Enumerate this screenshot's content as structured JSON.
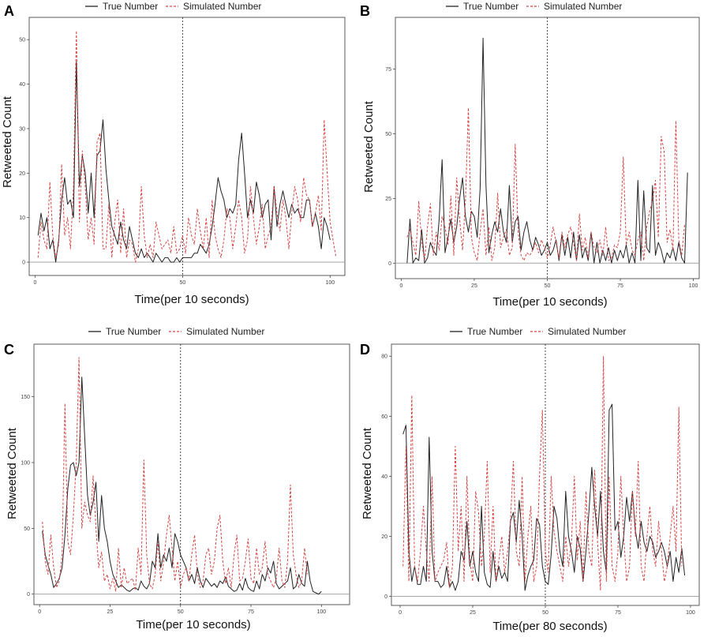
{
  "chart_data": [
    {
      "panel": "A",
      "type": "line",
      "legend": {
        "true_label": "True Number",
        "sim_label": "Simulated Number"
      },
      "xlabel": "Time(per 10 seconds)",
      "ylabel": "Retweeted Count",
      "xlim": [
        -2,
        105
      ],
      "ylim": [
        -3,
        55
      ],
      "xticks": [
        0,
        50,
        100
      ],
      "yticks": [
        0,
        10,
        20,
        30,
        40,
        50
      ],
      "vline": 50,
      "x_start": 1,
      "series": [
        {
          "name": "True Number",
          "color": "#222222",
          "dash": "none",
          "values": [
            6,
            11,
            7,
            10,
            3,
            5,
            0,
            5,
            14,
            19,
            13,
            14,
            10,
            45,
            17,
            24,
            20,
            11,
            20,
            10,
            24,
            25,
            32,
            21,
            14,
            8,
            6,
            4,
            9,
            5,
            3,
            8,
            5,
            2,
            1,
            3,
            1,
            2,
            1,
            0,
            2,
            1,
            0,
            1,
            1,
            0,
            0,
            1,
            0,
            1,
            1,
            1,
            1,
            2,
            2,
            4,
            3,
            2,
            4,
            8,
            13,
            19,
            16,
            14,
            10,
            12,
            11,
            13,
            23,
            29,
            20,
            10,
            14,
            11,
            18,
            15,
            10,
            13,
            14,
            5,
            17,
            8,
            13,
            16,
            13,
            10,
            13,
            11,
            12,
            10,
            10,
            14,
            14,
            8,
            11,
            8,
            3,
            10,
            8,
            5
          ]
        },
        {
          "name": "Simulated Number",
          "color": "#d64545",
          "dash": "3,2",
          "values": [
            1,
            9,
            5,
            3,
            18,
            6,
            1,
            4,
            22,
            6,
            10,
            3,
            17,
            52,
            9,
            25,
            17,
            5,
            10,
            4,
            27,
            29,
            3,
            3,
            13,
            1,
            9,
            14,
            2,
            12,
            1,
            5,
            4,
            0,
            3,
            17,
            6,
            1,
            4,
            1,
            9,
            6,
            3,
            4,
            5,
            2,
            8,
            2,
            3,
            6,
            2,
            10,
            6,
            4,
            12,
            7,
            3,
            10,
            1,
            14,
            6,
            3,
            1,
            5,
            12,
            10,
            3,
            8,
            14,
            10,
            2,
            5,
            17,
            10,
            4,
            8,
            13,
            3,
            6,
            8,
            17,
            11,
            7,
            14,
            10,
            3,
            11,
            17,
            14,
            9,
            19,
            15,
            14,
            8,
            11,
            15,
            7,
            32,
            20,
            9,
            5,
            1
          ]
        }
      ]
    },
    {
      "panel": "B",
      "type": "line",
      "legend": {
        "true_label": "True Number",
        "sim_label": "Simulated Number"
      },
      "xlabel": "Time(per 10 seconds)",
      "ylabel": "Retweeted Count",
      "xlim": [
        -2,
        102
      ],
      "ylim": [
        -6,
        95
      ],
      "xticks": [
        0,
        25,
        50,
        75,
        100
      ],
      "yticks": [
        0,
        25,
        50,
        75
      ],
      "vline": 50,
      "x_start": 2,
      "series": [
        {
          "name": "True Number",
          "color": "#222222",
          "dash": "none",
          "values": [
            0,
            17,
            0,
            2,
            1,
            13,
            0,
            2,
            8,
            5,
            3,
            17,
            40,
            4,
            10,
            17,
            8,
            14,
            25,
            33,
            18,
            12,
            20,
            18,
            10,
            29,
            87,
            30,
            4,
            11,
            16,
            12,
            21,
            12,
            8,
            30,
            8,
            16,
            18,
            5,
            12,
            16,
            9,
            5,
            10,
            7,
            3,
            5,
            8,
            3,
            5,
            9,
            1,
            11,
            3,
            10,
            2,
            12,
            1,
            11,
            2,
            6,
            1,
            12,
            0,
            8,
            0,
            5,
            1,
            6,
            0,
            5,
            1,
            5,
            2,
            7,
            0,
            4,
            0,
            32,
            1,
            28,
            6,
            4,
            30,
            3,
            8,
            5,
            0,
            4,
            2,
            6,
            1,
            8,
            2,
            0,
            35
          ]
        },
        {
          "name": "Simulated Number",
          "color": "#d64545",
          "dash": "3,2",
          "values": [
            10,
            13,
            8,
            3,
            24,
            8,
            1,
            14,
            23,
            3,
            12,
            5,
            18,
            14,
            7,
            26,
            3,
            33,
            17,
            5,
            24,
            60,
            10,
            4,
            1,
            12,
            21,
            3,
            14,
            1,
            6,
            27,
            6,
            10,
            13,
            3,
            6,
            46,
            12,
            3,
            1,
            4,
            3,
            5,
            8,
            4,
            9,
            6,
            2,
            7,
            14,
            8,
            2,
            12,
            6,
            11,
            14,
            8,
            1,
            19,
            5,
            10,
            2,
            12,
            6,
            4,
            9,
            3,
            14,
            1,
            2,
            7,
            6,
            12,
            41,
            7,
            12,
            5,
            3,
            9,
            12,
            1,
            14,
            20,
            24,
            32,
            10,
            49,
            43,
            8,
            13,
            5,
            55,
            9,
            3,
            15
          ]
        }
      ]
    },
    {
      "panel": "C",
      "type": "line",
      "legend": {
        "true_label": "True Number",
        "sim_label": "Simulated Number"
      },
      "xlabel": "Time(per 10 seconds)",
      "ylabel": "Retweeted Count",
      "xlim": [
        -2,
        110
      ],
      "ylim": [
        -8,
        190
      ],
      "xticks": [
        0,
        25,
        50,
        75,
        100
      ],
      "yticks": [
        0,
        50,
        100,
        150
      ],
      "vline": 50,
      "x_start": 1,
      "series": [
        {
          "name": "True Number",
          "color": "#222222",
          "dash": "none",
          "values": [
            48,
            30,
            22,
            15,
            5,
            8,
            12,
            20,
            45,
            80,
            98,
            100,
            90,
            100,
            165,
            120,
            75,
            60,
            70,
            85,
            40,
            75,
            50,
            40,
            25,
            15,
            10,
            5,
            7,
            5,
            3,
            2,
            4,
            5,
            3,
            10,
            6,
            4,
            8,
            25,
            20,
            46,
            20,
            30,
            25,
            35,
            20,
            46,
            40,
            30,
            25,
            20,
            10,
            15,
            8,
            20,
            10,
            5,
            12,
            9,
            6,
            8,
            5,
            10,
            8,
            13,
            6,
            4,
            2,
            3,
            8,
            3,
            12,
            5,
            3,
            2,
            10,
            4,
            15,
            10,
            20,
            16,
            25,
            8,
            4,
            6,
            8,
            10,
            20,
            4,
            6,
            15,
            8,
            6,
            25,
            10,
            2,
            1,
            0,
            2
          ]
        },
        {
          "name": "Simulated Number",
          "color": "#d64545",
          "dash": "3,2",
          "values": [
            55,
            25,
            15,
            45,
            20,
            5,
            10,
            30,
            145,
            40,
            30,
            60,
            100,
            180,
            50,
            70,
            60,
            55,
            90,
            50,
            20,
            32,
            10,
            15,
            4,
            12,
            2,
            35,
            5,
            20,
            8,
            10,
            12,
            3,
            35,
            15,
            102,
            30,
            8,
            4,
            15,
            40,
            10,
            24,
            45,
            60,
            35,
            10,
            25,
            5,
            15,
            20,
            10,
            30,
            45,
            15,
            5,
            10,
            30,
            35,
            15,
            25,
            50,
            60,
            25,
            8,
            20,
            5,
            30,
            45,
            10,
            12,
            25,
            42,
            12,
            8,
            35,
            15,
            20,
            40,
            15,
            10,
            5,
            12,
            35,
            10,
            5,
            25,
            83,
            30,
            15,
            5,
            10,
            35,
            15
          ]
        }
      ]
    },
    {
      "panel": "D",
      "type": "line",
      "legend": {
        "true_label": "True Number",
        "sim_label": "Simulated Number"
      },
      "xlabel": "Time(per 80 seconds)",
      "ylabel": "Retweeted Count",
      "xlim": [
        -3,
        103
      ],
      "ylim": [
        -3,
        84
      ],
      "xticks": [
        0,
        25,
        50,
        75,
        100
      ],
      "yticks": [
        0,
        20,
        40,
        60,
        80
      ],
      "vline": 50,
      "x_start": 1,
      "series": [
        {
          "name": "True Number",
          "color": "#222222",
          "dash": "none",
          "values": [
            54,
            57,
            15,
            5,
            10,
            4,
            4,
            10,
            5,
            53,
            15,
            5,
            5,
            3,
            4,
            10,
            3,
            5,
            2,
            5,
            15,
            12,
            25,
            10,
            15,
            8,
            5,
            30,
            8,
            4,
            3,
            15,
            5,
            10,
            6,
            8,
            5,
            25,
            28,
            18,
            32,
            20,
            2,
            7,
            10,
            12,
            26,
            24,
            10,
            5,
            4,
            14,
            30,
            26,
            15,
            10,
            35,
            20,
            15,
            8,
            20,
            16,
            5,
            15,
            28,
            43,
            30,
            20,
            35,
            15,
            8,
            62,
            64,
            22,
            25,
            13,
            20,
            33,
            25,
            35,
            22,
            16,
            25,
            18,
            15,
            20,
            18,
            13,
            15,
            18,
            15,
            10,
            15,
            5,
            13,
            8,
            16,
            7
          ]
        },
        {
          "name": "Simulated Number",
          "color": "#d64545",
          "dash": "3,2",
          "values": [
            10,
            50,
            5,
            67,
            10,
            5,
            15,
            30,
            15,
            5,
            40,
            5,
            8,
            10,
            12,
            18,
            3,
            10,
            50,
            15,
            30,
            5,
            40,
            12,
            5,
            35,
            28,
            10,
            20,
            45,
            8,
            30,
            5,
            12,
            20,
            8,
            15,
            25,
            45,
            15,
            10,
            40,
            5,
            20,
            30,
            5,
            10,
            40,
            62,
            15,
            8,
            40,
            22,
            15,
            10,
            5,
            20,
            10,
            18,
            40,
            12,
            25,
            5,
            35,
            15,
            10,
            42,
            18,
            2,
            80,
            5,
            40,
            10,
            5,
            15,
            40,
            20,
            5,
            10,
            35,
            20,
            45,
            10,
            5,
            20,
            30,
            15,
            10,
            25,
            15,
            5,
            10,
            20,
            30,
            15,
            63,
            10
          ]
        }
      ]
    }
  ]
}
